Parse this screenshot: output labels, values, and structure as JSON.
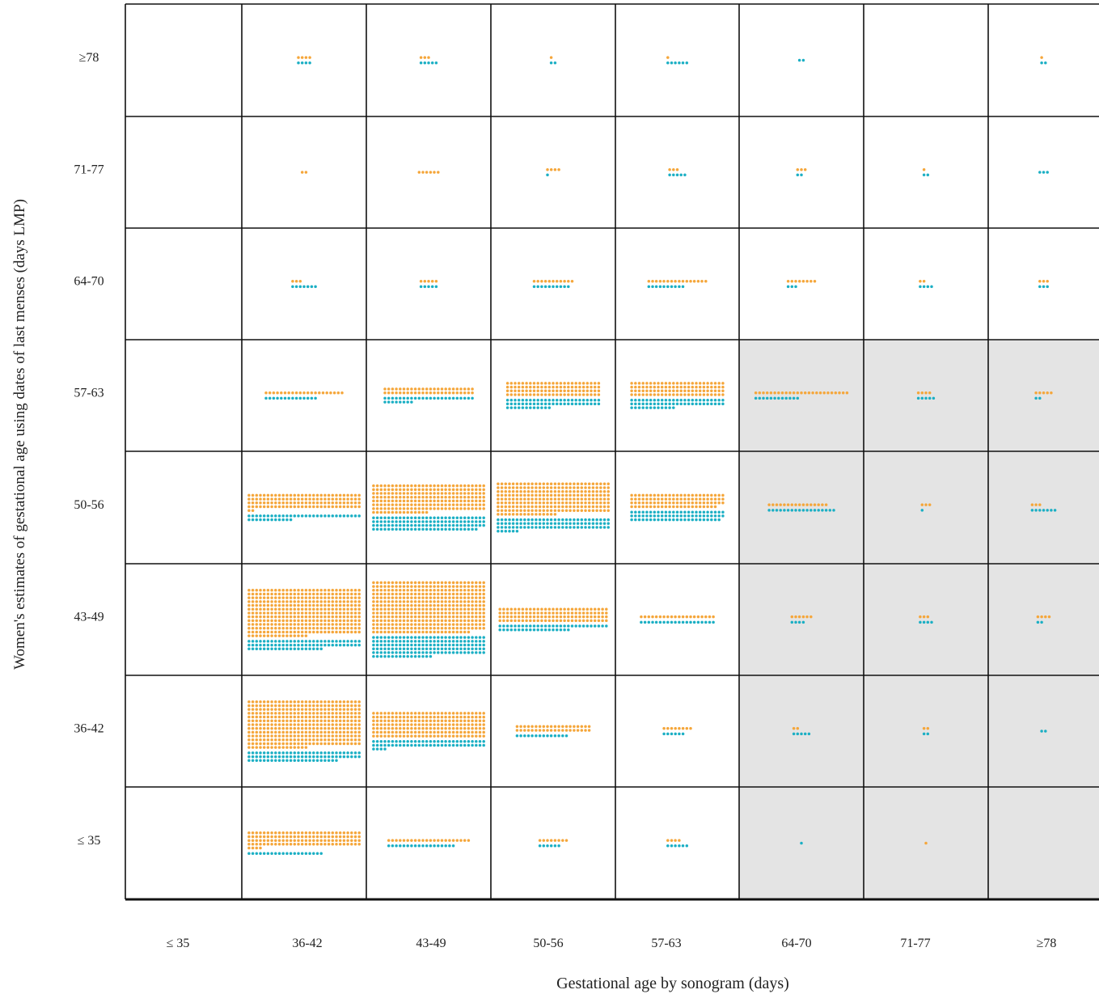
{
  "chart_data": {
    "type": "scatter",
    "subtype": "unit-dot-matrix",
    "xlabel": "Gestational age by sonogram (days)",
    "ylabel": "Women's estimates of gestational age using dates of last menses (days LMP)",
    "x_categories": [
      "≤ 35",
      "36-42",
      "43-49",
      "50-56",
      "57-63",
      "64-70",
      "71-77",
      "≥78"
    ],
    "y_categories": [
      "≤ 35",
      "36-42",
      "43-49",
      "50-56",
      "57-63",
      "64-70",
      "71-77",
      "≥78"
    ],
    "series": [
      {
        "key": "orange",
        "color": "#F5A63A"
      },
      {
        "key": "teal",
        "color": "#1BAFC4"
      }
    ],
    "shaded_region": {
      "x_from": "64-70",
      "x_to": "≥78",
      "y_from": "≤ 35",
      "y_to": "57-63",
      "color": "#E4E4E4"
    },
    "cells": [
      {
        "x": "36-42",
        "y": "≥78",
        "orange": 4,
        "teal": 4
      },
      {
        "x": "43-49",
        "y": "≥78",
        "orange": 3,
        "teal": 5
      },
      {
        "x": "50-56",
        "y": "≥78",
        "orange": 1,
        "teal": 2
      },
      {
        "x": "57-63",
        "y": "≥78",
        "orange": 1,
        "teal": 6
      },
      {
        "x": "64-70",
        "y": "≥78",
        "orange": 0,
        "teal": 2
      },
      {
        "x": "≥78",
        "y": "≥78",
        "orange": 1,
        "teal": 2
      },
      {
        "x": "36-42",
        "y": "71-77",
        "orange": 2,
        "teal": 0
      },
      {
        "x": "43-49",
        "y": "71-77",
        "orange": 6,
        "teal": 0
      },
      {
        "x": "50-56",
        "y": "71-77",
        "orange": 4,
        "teal": 1
      },
      {
        "x": "57-63",
        "y": "71-77",
        "orange": 3,
        "teal": 5
      },
      {
        "x": "64-70",
        "y": "71-77",
        "orange": 3,
        "teal": 2
      },
      {
        "x": "71-77",
        "y": "71-77",
        "orange": 1,
        "teal": 2
      },
      {
        "x": "≥78",
        "y": "71-77",
        "orange": 0,
        "teal": 3
      },
      {
        "x": "36-42",
        "y": "64-70",
        "orange": 3,
        "teal": 7
      },
      {
        "x": "43-49",
        "y": "64-70",
        "orange": 5,
        "teal": 5
      },
      {
        "x": "50-56",
        "y": "64-70",
        "orange": 11,
        "teal": 10
      },
      {
        "x": "57-63",
        "y": "64-70",
        "orange": 16,
        "teal": 10
      },
      {
        "x": "64-70",
        "y": "64-70",
        "orange": 8,
        "teal": 3
      },
      {
        "x": "71-77",
        "y": "64-70",
        "orange": 2,
        "teal": 4
      },
      {
        "x": "≥78",
        "y": "64-70",
        "orange": 3,
        "teal": 3
      },
      {
        "x": "36-42",
        "y": "57-63",
        "orange": 21,
        "teal": 14
      },
      {
        "x": "43-49",
        "y": "57-63",
        "orange": 48,
        "teal": 32
      },
      {
        "x": "50-56",
        "y": "57-63",
        "orange": 100,
        "teal": 62
      },
      {
        "x": "57-63",
        "y": "57-63",
        "orange": 100,
        "teal": 62
      },
      {
        "x": "64-70",
        "y": "57-63",
        "orange": 25,
        "teal": 12
      },
      {
        "x": "71-77",
        "y": "57-63",
        "orange": 4,
        "teal": 5
      },
      {
        "x": "≥78",
        "y": "57-63",
        "orange": 5,
        "teal": 2
      },
      {
        "x": "36-42",
        "y": "50-56",
        "orange": 122,
        "teal": 42
      },
      {
        "x": "43-49",
        "y": "50-56",
        "orange": 225,
        "teal": 118
      },
      {
        "x": "50-56",
        "y": "50-56",
        "orange": 256,
        "teal": 96
      },
      {
        "x": "57-63",
        "y": "50-56",
        "orange": 98,
        "teal": 74
      },
      {
        "x": "64-70",
        "y": "50-56",
        "orange": 16,
        "teal": 18
      },
      {
        "x": "71-77",
        "y": "50-56",
        "orange": 3,
        "teal": 1
      },
      {
        "x": "≥78",
        "y": "50-56",
        "orange": 3,
        "teal": 7
      },
      {
        "x": "36-42",
        "y": "43-49",
        "orange": 376,
        "teal": 80
      },
      {
        "x": "43-49",
        "y": "43-49",
        "orange": 416,
        "teal": 166
      },
      {
        "x": "50-56",
        "y": "43-49",
        "orange": 116,
        "teal": 48
      },
      {
        "x": "57-63",
        "y": "43-49",
        "orange": 20,
        "teal": 20
      },
      {
        "x": "64-70",
        "y": "43-49",
        "orange": 6,
        "teal": 4
      },
      {
        "x": "71-77",
        "y": "43-49",
        "orange": 3,
        "teal": 4
      },
      {
        "x": "≥78",
        "y": "43-49",
        "orange": 4,
        "teal": 2
      },
      {
        "x": "36-42",
        "y": "36-42",
        "orange": 376,
        "teal": 84
      },
      {
        "x": "43-49",
        "y": "36-42",
        "orange": 210,
        "teal": 64
      },
      {
        "x": "50-56",
        "y": "36-42",
        "orange": 40,
        "teal": 14
      },
      {
        "x": "57-63",
        "y": "36-42",
        "orange": 8,
        "teal": 6
      },
      {
        "x": "64-70",
        "y": "36-42",
        "orange": 2,
        "teal": 5
      },
      {
        "x": "71-77",
        "y": "36-42",
        "orange": 2,
        "teal": 2
      },
      {
        "x": "≥78",
        "y": "36-42",
        "orange": 0,
        "teal": 2
      },
      {
        "x": "36-42",
        "y": "≤ 35",
        "orange": 124,
        "teal": 20
      },
      {
        "x": "43-49",
        "y": "≤ 35",
        "orange": 22,
        "teal": 18
      },
      {
        "x": "50-56",
        "y": "≤ 35",
        "orange": 8,
        "teal": 6
      },
      {
        "x": "57-63",
        "y": "≤ 35",
        "orange": 4,
        "teal": 6
      },
      {
        "x": "64-70",
        "y": "≤ 35",
        "orange": 0,
        "teal": 1
      },
      {
        "x": "71-77",
        "y": "≤ 35",
        "orange": 1,
        "teal": 0
      }
    ]
  }
}
